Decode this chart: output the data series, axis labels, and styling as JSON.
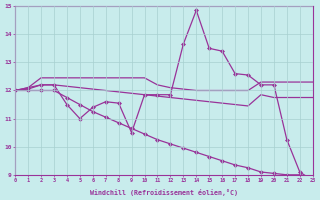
{
  "xlabel": "Windchill (Refroidissement éolien,°C)",
  "bg_color": "#c8ecec",
  "grid_color": "#a8d0d0",
  "line_color": "#993399",
  "xlim": [
    0,
    23
  ],
  "ylim": [
    9,
    15
  ],
  "yticks": [
    9,
    10,
    11,
    12,
    13,
    14,
    15
  ],
  "xticks": [
    0,
    1,
    2,
    3,
    4,
    5,
    6,
    7,
    8,
    9,
    10,
    11,
    12,
    13,
    14,
    15,
    16,
    17,
    18,
    19,
    20,
    21,
    22,
    23
  ],
  "line1_x": [
    0,
    1,
    2,
    3,
    4,
    5,
    6,
    7,
    8,
    9,
    10,
    11,
    12,
    13,
    14,
    15,
    16,
    17,
    18,
    19,
    20,
    21,
    22,
    23
  ],
  "line1_y": [
    12.0,
    12.1,
    12.2,
    12.2,
    11.5,
    11.0,
    11.4,
    11.6,
    11.55,
    10.5,
    11.85,
    11.85,
    11.85,
    13.65,
    14.85,
    13.5,
    13.4,
    12.6,
    12.55,
    12.2,
    12.2,
    10.25,
    9.1,
    8.8
  ],
  "line2_x": [
    0,
    1,
    2,
    3,
    4,
    5,
    6,
    7,
    8,
    9,
    10,
    11,
    12,
    13,
    14,
    15,
    16,
    17,
    18,
    19,
    20,
    21,
    22,
    23
  ],
  "line2_y": [
    12.0,
    12.1,
    12.45,
    12.45,
    12.45,
    12.45,
    12.45,
    12.45,
    12.45,
    12.45,
    12.45,
    12.2,
    12.1,
    12.05,
    12.0,
    12.0,
    12.0,
    12.0,
    12.0,
    12.3,
    12.3,
    12.3,
    12.3,
    12.3
  ],
  "line3_x": [
    0,
    1,
    2,
    3,
    4,
    5,
    6,
    7,
    8,
    9,
    10,
    11,
    12,
    13,
    14,
    15,
    16,
    17,
    18,
    19,
    20,
    21,
    22,
    23
  ],
  "line3_y": [
    12.0,
    12.05,
    12.2,
    12.2,
    12.15,
    12.1,
    12.05,
    12.0,
    11.95,
    11.9,
    11.85,
    11.8,
    11.75,
    11.7,
    11.65,
    11.6,
    11.55,
    11.5,
    11.45,
    11.85,
    11.75,
    11.75,
    11.75,
    11.75
  ],
  "line4_x": [
    0,
    1,
    2,
    3,
    4,
    5,
    6,
    7,
    8,
    9,
    10,
    11,
    12,
    13,
    14,
    15,
    16,
    17,
    18,
    19,
    20,
    21,
    22,
    23
  ],
  "line4_y": [
    12.0,
    12.0,
    12.0,
    12.0,
    11.75,
    11.5,
    11.25,
    11.05,
    10.85,
    10.65,
    10.45,
    10.25,
    10.1,
    9.95,
    9.8,
    9.65,
    9.5,
    9.35,
    9.25,
    9.1,
    9.05,
    9.0,
    9.0,
    8.85
  ],
  "marker": "D",
  "markersize": 2.0,
  "linewidth": 0.9
}
